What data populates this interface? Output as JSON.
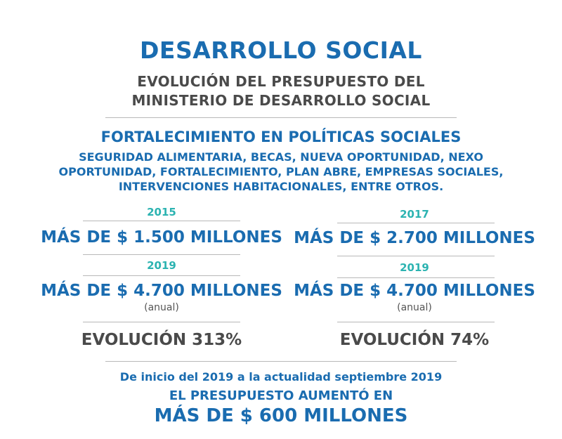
{
  "header": {
    "title": "DESARROLLO SOCIAL",
    "subtitle_line1": "EVOLUCIÓN DEL PRESUPUESTO DEL",
    "subtitle_line2": "MINISTERIO DE DESARROLLO SOCIAL"
  },
  "policies": {
    "title": "FORTALECIMIENTO EN POLÍTICAS SOCIALES",
    "programs_line1": "SEGURIDAD ALIMENTARIA, BECAS, NUEVA OPORTUNIDAD, NEXO",
    "programs_line2": "OPORTUNIDAD, FORTALECIMIENTO, PLAN ABRE, EMPRESAS SOCIALES,",
    "programs_line3": "INTERVENCIONES HABITACIONALES, ENTRE OTROS."
  },
  "left": {
    "year_a": "2015",
    "amount_a": "MÁS DE $ 1.500 MILLONES",
    "year_b": "2019",
    "amount_b": "MÁS DE $ 4.700 MILLONES",
    "note_b": "(anual)",
    "evolution": "EVOLUCIÓN 313%"
  },
  "right": {
    "year_a": "2017",
    "amount_a": "MÁS DE $ 2.700 MILLONES",
    "year_b": "2019",
    "amount_b": "MÁS DE $ 4.700 MILLONES",
    "note_b": "(anual)",
    "evolution": "EVOLUCIÓN 74%"
  },
  "footer": {
    "line1": "De inicio del 2019 a la actualidad septiembre 2019",
    "line2": "EL PRESUPUESTO AUMENTÓ EN",
    "line3": "MÁS DE $ 600 MILLONES"
  },
  "colors": {
    "primary_blue": "#1a6cb0",
    "teal": "#2cb3b1",
    "dark_gray": "#4a4a4a"
  }
}
